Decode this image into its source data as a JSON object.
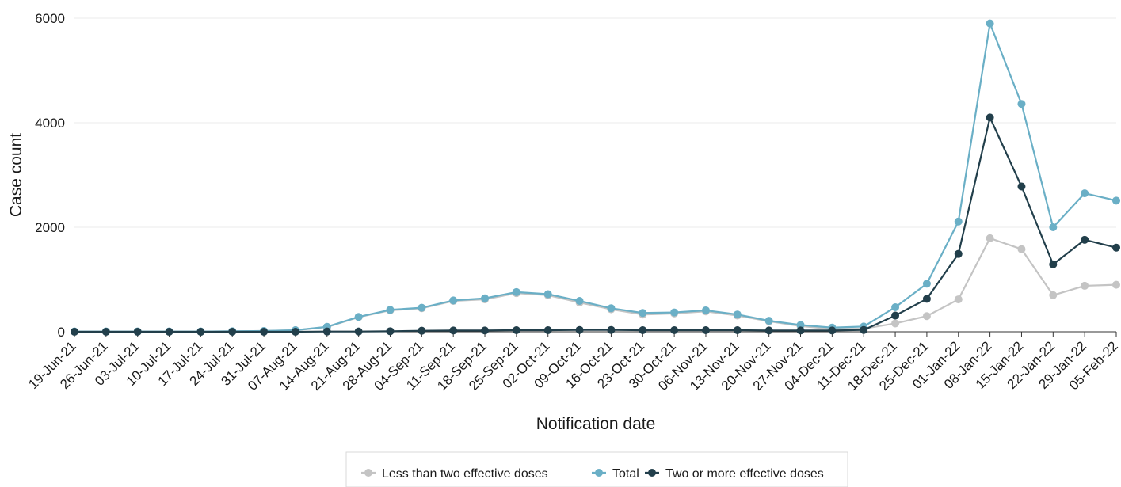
{
  "chart_data": {
    "type": "line",
    "xlabel": "Notification date",
    "ylabel": "Case count",
    "ylim": [
      0,
      6000
    ],
    "yticks": [
      0,
      2000,
      4000,
      6000
    ],
    "ytick_labels": [
      "0",
      "2000",
      "4000",
      "6000"
    ],
    "grid": "horizontal",
    "legend_position": "bottom",
    "categories": [
      "19-Jun-21",
      "26-Jun-21",
      "03-Jul-21",
      "10-Jul-21",
      "17-Jul-21",
      "24-Jul-21",
      "31-Jul-21",
      "07-Aug-21",
      "14-Aug-21",
      "21-Aug-21",
      "28-Aug-21",
      "04-Sep-21",
      "11-Sep-21",
      "18-Sep-21",
      "25-Sep-21",
      "02-Oct-21",
      "09-Oct-21",
      "16-Oct-21",
      "23-Oct-21",
      "30-Oct-21",
      "06-Nov-21",
      "13-Nov-21",
      "20-Nov-21",
      "27-Nov-21",
      "04-Dec-21",
      "11-Dec-21",
      "18-Dec-21",
      "25-Dec-21",
      "01-Jan-22",
      "08-Jan-22",
      "15-Jan-22",
      "22-Jan-22",
      "29-Jan-22",
      "05-Feb-22"
    ],
    "series": [
      {
        "name": "Less than two effective doses",
        "color": "#c4c4c4",
        "values": [
          5,
          5,
          5,
          5,
          5,
          10,
          15,
          30,
          90,
          280,
          410,
          450,
          590,
          620,
          740,
          700,
          560,
          430,
          330,
          350,
          390,
          310,
          200,
          110,
          50,
          60,
          160,
          300,
          620,
          1790,
          1580,
          700,
          880,
          900
        ]
      },
      {
        "name": "Total",
        "color": "#6aafc6",
        "values": [
          5,
          5,
          5,
          5,
          5,
          10,
          15,
          30,
          95,
          285,
          420,
          460,
          600,
          640,
          760,
          720,
          590,
          450,
          360,
          370,
          410,
          330,
          210,
          130,
          80,
          100,
          470,
          920,
          2110,
          5900,
          4360,
          2000,
          2650,
          2510
        ]
      },
      {
        "name": "Two or more effective doses",
        "color": "#223f4b",
        "values": [
          0,
          0,
          0,
          0,
          0,
          0,
          0,
          0,
          5,
          5,
          10,
          20,
          25,
          25,
          30,
          30,
          35,
          35,
          30,
          30,
          30,
          30,
          25,
          25,
          25,
          35,
          310,
          630,
          1490,
          4100,
          2780,
          1290,
          1760,
          1610
        ]
      }
    ]
  }
}
